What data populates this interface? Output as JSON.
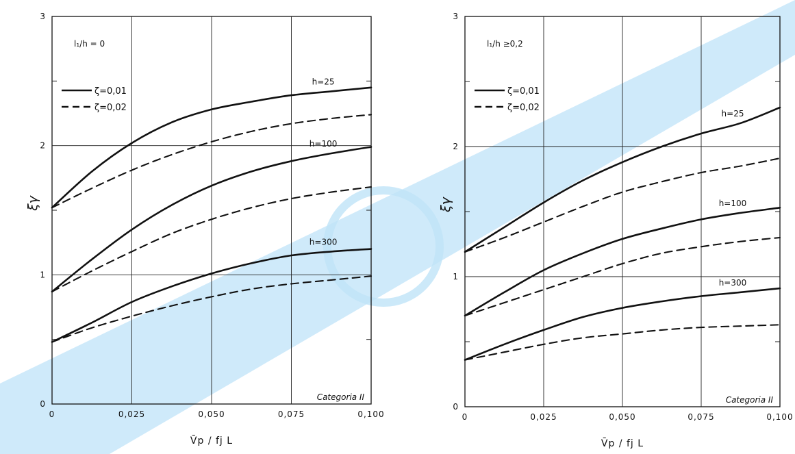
{
  "charts": [
    {
      "id": "left",
      "geometry_label": "l₁/h = 0",
      "legend": [
        {
          "style": "solid",
          "label": "ζ=0,01"
        },
        {
          "style": "dashed",
          "label": "ζ=0,02"
        }
      ],
      "category": "Categoria II",
      "ylabel": "ξγ",
      "xlabel": "V̄p / fj L"
    },
    {
      "id": "right",
      "geometry_label": "l₁/h ≥0,2",
      "legend": [
        {
          "style": "solid",
          "label": "ζ=0,01"
        },
        {
          "style": "dashed",
          "label": "ζ=0,02"
        }
      ],
      "category": "Categoria II",
      "ylabel": "ξγ",
      "xlabel": "V̄p / fj L"
    }
  ],
  "chart_data": [
    {
      "type": "line",
      "title": "",
      "xlabel": "V̄p / fj L",
      "ylabel": "ξγ",
      "xlim": [
        0,
        0.1
      ],
      "ylim": [
        0,
        3
      ],
      "x_ticks": [
        "0",
        "0,025",
        "0,050",
        "0,075",
        "0,100"
      ],
      "y_ticks": [
        "0",
        "1",
        "2",
        "3"
      ],
      "grid": true,
      "x": [
        0,
        0.0125,
        0.025,
        0.0375,
        0.05,
        0.0625,
        0.075,
        0.0875,
        0.1
      ],
      "series": [
        {
          "label": "h=25",
          "zeta": "0,01",
          "style": "solid",
          "values": [
            1.52,
            1.8,
            2.02,
            2.18,
            2.28,
            2.34,
            2.39,
            2.42,
            2.45
          ]
        },
        {
          "zeta": "0,02",
          "style": "dashed",
          "values": [
            1.52,
            1.67,
            1.81,
            1.93,
            2.03,
            2.11,
            2.17,
            2.21,
            2.24
          ]
        },
        {
          "label": "h=100",
          "zeta": "0,01",
          "style": "solid",
          "values": [
            0.87,
            1.12,
            1.35,
            1.54,
            1.69,
            1.8,
            1.88,
            1.94,
            1.99
          ]
        },
        {
          "zeta": "0,02",
          "style": "dashed",
          "values": [
            0.87,
            1.03,
            1.18,
            1.32,
            1.43,
            1.52,
            1.59,
            1.64,
            1.68
          ]
        },
        {
          "label": "h=300",
          "zeta": "0,01",
          "style": "solid",
          "values": [
            0.48,
            0.63,
            0.79,
            0.91,
            1.01,
            1.09,
            1.15,
            1.18,
            1.2
          ]
        },
        {
          "zeta": "0,02",
          "style": "dashed",
          "values": [
            0.48,
            0.59,
            0.68,
            0.76,
            0.83,
            0.89,
            0.93,
            0.96,
            0.99
          ]
        }
      ]
    },
    {
      "type": "line",
      "title": "",
      "xlabel": "V̄p / fj L",
      "ylabel": "ξγ",
      "xlim": [
        0,
        0.1
      ],
      "ylim": [
        0,
        3
      ],
      "x_ticks": [
        "0",
        "0,025",
        "0,050",
        "0,075",
        "0,100"
      ],
      "y_ticks": [
        "0",
        "1",
        "2",
        "3"
      ],
      "grid": true,
      "x": [
        0,
        0.0125,
        0.025,
        0.0375,
        0.05,
        0.0625,
        0.075,
        0.0875,
        0.1
      ],
      "series": [
        {
          "label": "h=25",
          "zeta": "0,01",
          "style": "solid",
          "values": [
            1.19,
            1.38,
            1.57,
            1.74,
            1.88,
            2.0,
            2.1,
            2.18,
            2.3
          ]
        },
        {
          "zeta": "0,02",
          "style": "dashed",
          "values": [
            1.19,
            1.3,
            1.42,
            1.54,
            1.65,
            1.73,
            1.8,
            1.85,
            1.91
          ]
        },
        {
          "label": "h=100",
          "zeta": "0,01",
          "style": "solid",
          "values": [
            0.7,
            0.88,
            1.05,
            1.18,
            1.29,
            1.37,
            1.44,
            1.49,
            1.53
          ]
        },
        {
          "zeta": "0,02",
          "style": "dashed",
          "values": [
            0.7,
            0.8,
            0.9,
            1.0,
            1.1,
            1.18,
            1.23,
            1.27,
            1.3
          ]
        },
        {
          "label": "h=300",
          "zeta": "0,01",
          "style": "solid",
          "values": [
            0.36,
            0.48,
            0.59,
            0.69,
            0.76,
            0.81,
            0.85,
            0.88,
            0.91
          ]
        },
        {
          "zeta": "0,02",
          "style": "dashed",
          "values": [
            0.36,
            0.42,
            0.48,
            0.53,
            0.56,
            0.59,
            0.61,
            0.62,
            0.63
          ]
        }
      ]
    }
  ]
}
